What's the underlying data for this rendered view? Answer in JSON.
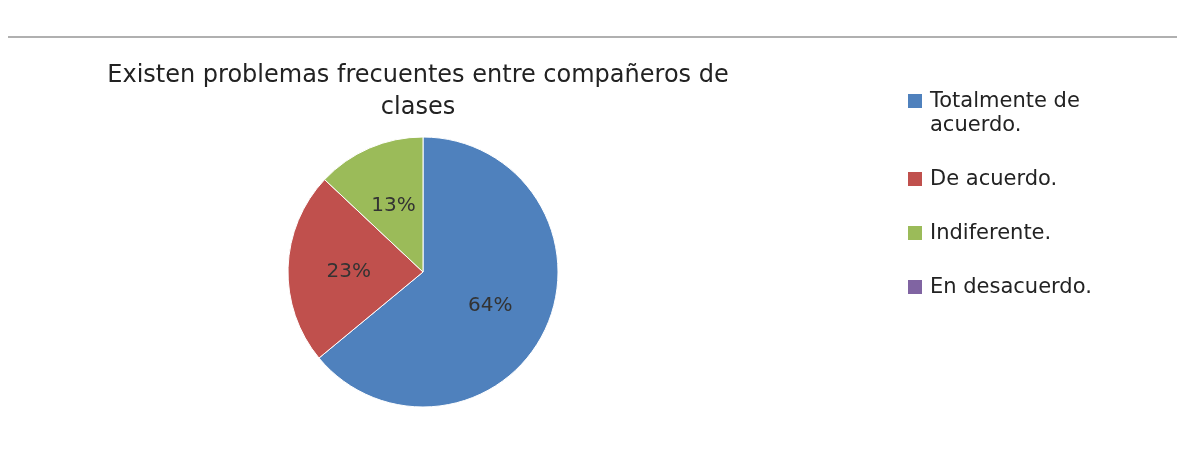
{
  "chart_data": {
    "type": "pie",
    "title": "Existen problemas frecuentes entre compañeros de clases",
    "categories": [
      "Totalmente de acuerdo.",
      "De acuerdo.",
      "Indiferente.",
      "En desacuerdo."
    ],
    "values": [
      64,
      23,
      13,
      0
    ],
    "colors": [
      "#4f81bd",
      "#c0504d",
      "#9bbb59",
      "#8064a2"
    ],
    "value_labels": [
      "64%",
      "23%",
      "13%",
      null
    ],
    "legend": "right"
  }
}
